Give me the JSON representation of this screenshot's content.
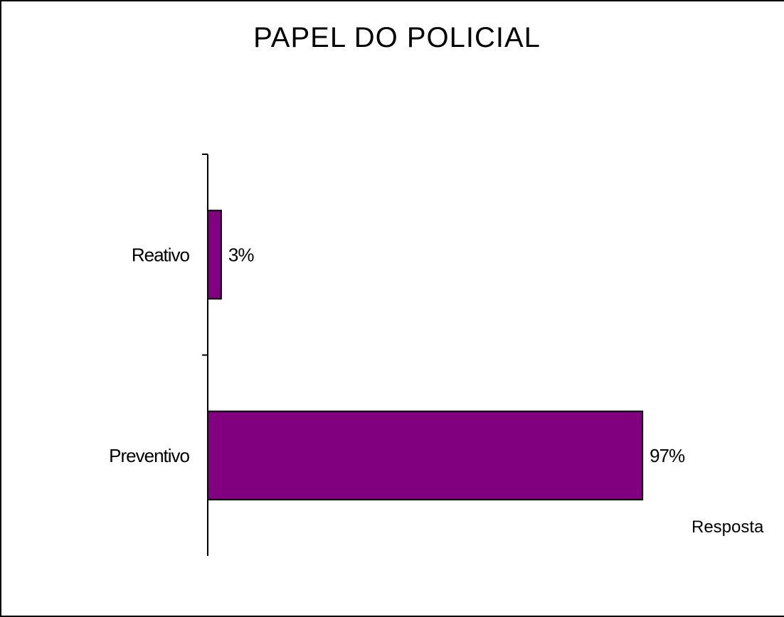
{
  "chart_data": {
    "type": "bar",
    "orientation": "horizontal",
    "title": "PAPEL DO POLICIAL",
    "categories": [
      "Reativo",
      "Preventivo"
    ],
    "values": [
      3,
      97
    ],
    "value_labels": [
      "3%",
      "97%"
    ],
    "xlim": [
      0,
      100
    ],
    "grid": false,
    "legend": "none",
    "bar_color": "#800080",
    "annotation": "Resposta"
  }
}
